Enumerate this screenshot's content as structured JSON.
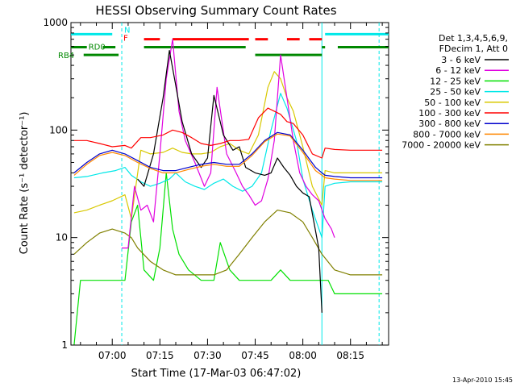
{
  "chart_data": {
    "type": "line",
    "title": "HESSI Observing Summary Count Rates",
    "xlabel": "Start Time (17-Mar-03 06:47:02)",
    "ylabel": "Count Rate (s⁻¹ detector⁻¹)",
    "xlim": [
      "06:47",
      "08:27"
    ],
    "ylim": [
      1,
      1000
    ],
    "yscale": "log",
    "grid": false,
    "x_ticks": [
      "07:00",
      "07:15",
      "07:30",
      "07:45",
      "08:00",
      "08:15"
    ],
    "y_ticks": [
      "1",
      "10",
      "100",
      "1000"
    ],
    "legend": {
      "placement": "right",
      "header": [
        "Det 1,3,4,5,6,9,",
        "FDecim 1, Att 0"
      ],
      "items": [
        {
          "label": "3 - 6 keV",
          "color": "#000000"
        },
        {
          "label": "6 - 12 keV",
          "color": "#e000e0"
        },
        {
          "label": "12 - 25 keV",
          "color": "#00e000"
        },
        {
          "label": "25 - 50 keV",
          "color": "#00e8e8"
        },
        {
          "label": "50 - 100 keV",
          "color": "#d8c800"
        },
        {
          "label": "100 - 300 keV",
          "color": "#ff0000"
        },
        {
          "label": "300 - 800 keV",
          "color": "#0000cc"
        },
        {
          "label": "800 - 7000 keV",
          "color": "#ff8800"
        },
        {
          "label": "7000 - 20000 keV",
          "color": "#808000"
        }
      ]
    },
    "series": [
      {
        "name": "3 - 6 keV",
        "x": [
          "06:47",
          "07:05",
          "07:08",
          "07:10",
          "07:13",
          "07:16",
          "07:18",
          "07:20",
          "07:22",
          "07:25",
          "07:28",
          "07:30",
          "07:32",
          "07:35",
          "07:38",
          "07:40",
          "07:42",
          "07:45",
          "07:48",
          "07:50",
          "07:52",
          "07:54",
          "07:56",
          "07:58",
          "08:00",
          "08:02",
          "08:05",
          "08:06"
        ],
        "y": [
          null,
          null,
          35,
          30,
          60,
          200,
          550,
          260,
          120,
          60,
          45,
          55,
          210,
          90,
          65,
          70,
          45,
          40,
          38,
          40,
          55,
          45,
          38,
          30,
          26,
          24,
          8,
          2
        ]
      },
      {
        "name": "6 - 12 keV",
        "x": [
          "07:03",
          "07:05",
          "07:07",
          "07:09",
          "07:11",
          "07:13",
          "07:15",
          "07:17",
          "07:19",
          "07:21",
          "07:23",
          "07:26",
          "07:29",
          "07:31",
          "07:33",
          "07:36",
          "07:39",
          "07:41",
          "07:43",
          "07:45",
          "07:47",
          "07:49",
          "07:51",
          "07:53",
          "07:55",
          "07:57",
          "07:59",
          "08:01",
          "08:03",
          "08:05",
          "08:07",
          "08:09",
          "08:10"
        ],
        "y": [
          8,
          8,
          30,
          18,
          20,
          14,
          60,
          300,
          700,
          150,
          80,
          50,
          30,
          40,
          250,
          60,
          40,
          30,
          25,
          20,
          22,
          35,
          80,
          500,
          200,
          80,
          40,
          30,
          25,
          22,
          15,
          12,
          10
        ]
      },
      {
        "name": "12 - 25 keV",
        "x": [
          "06:48",
          "06:50",
          "06:55",
          "07:00",
          "07:04",
          "07:06",
          "07:08",
          "07:10",
          "07:13",
          "07:15",
          "07:17",
          "07:19",
          "07:21",
          "07:24",
          "07:28",
          "07:32",
          "07:34",
          "07:37",
          "07:40",
          "07:45",
          "07:50",
          "07:53",
          "07:56",
          "07:59",
          "08:02",
          "08:05",
          "08:08",
          "08:10",
          "08:15",
          "08:20",
          "08:25"
        ],
        "y": [
          1,
          4,
          4,
          4,
          4,
          14,
          20,
          5,
          4,
          8,
          40,
          12,
          7,
          5,
          4,
          4,
          9,
          5,
          4,
          4,
          4,
          5,
          4,
          4,
          4,
          4,
          4,
          3,
          3,
          3,
          3
        ]
      },
      {
        "name": "25 - 50 keV",
        "x": [
          "06:48",
          "06:52",
          "06:57",
          "07:01",
          "07:04",
          "07:06",
          "07:09",
          "07:12",
          "07:15",
          "07:18",
          "07:20",
          "07:23",
          "07:26",
          "07:29",
          "07:32",
          "07:35",
          "07:38",
          "07:41",
          "07:44",
          "07:47",
          "07:50",
          "07:53",
          "07:55",
          "07:58",
          "08:00",
          "08:03",
          "08:06",
          "08:07",
          "08:10",
          "08:15",
          "08:20",
          "08:25"
        ],
        "y": [
          36,
          37,
          40,
          42,
          45,
          38,
          33,
          30,
          32,
          35,
          40,
          33,
          30,
          28,
          32,
          35,
          30,
          27,
          30,
          40,
          100,
          220,
          160,
          80,
          35,
          18,
          10,
          30,
          32,
          33,
          33,
          33
        ]
      },
      {
        "name": "50 - 100 keV",
        "x": [
          "06:48",
          "06:52",
          "06:56",
          "07:00",
          "07:04",
          "07:06",
          "07:09",
          "07:12",
          "07:16",
          "07:19",
          "07:22",
          "07:25",
          "07:28",
          "07:31",
          "07:34",
          "07:37",
          "07:40",
          "07:43",
          "07:46",
          "07:49",
          "07:51",
          "07:53",
          "07:55",
          "07:57",
          "08:00",
          "08:03",
          "08:06",
          "08:07",
          "08:10",
          "08:15",
          "08:20",
          "08:25"
        ],
        "y": [
          17,
          18,
          20,
          22,
          25,
          15,
          65,
          60,
          62,
          68,
          62,
          60,
          60,
          62,
          70,
          75,
          65,
          60,
          90,
          250,
          350,
          300,
          200,
          150,
          70,
          30,
          20,
          42,
          40,
          40,
          40,
          40
        ]
      },
      {
        "name": "100 - 300 keV",
        "x": [
          "06:48",
          "06:52",
          "06:56",
          "07:00",
          "07:04",
          "07:06",
          "07:09",
          "07:12",
          "07:16",
          "07:19",
          "07:22",
          "07:25",
          "07:28",
          "07:31",
          "07:34",
          "07:37",
          "07:40",
          "07:43",
          "07:46",
          "07:49",
          "07:51",
          "07:53",
          "07:55",
          "07:57",
          "08:00",
          "08:03",
          "08:06",
          "08:07",
          "08:10",
          "08:15",
          "08:20",
          "08:25"
        ],
        "y": [
          80,
          80,
          75,
          70,
          72,
          68,
          85,
          85,
          90,
          100,
          95,
          85,
          75,
          72,
          75,
          80,
          80,
          82,
          130,
          160,
          150,
          140,
          120,
          115,
          90,
          60,
          55,
          68,
          66,
          65,
          65,
          65
        ]
      },
      {
        "name": "300 - 800 keV",
        "x": [
          "06:48",
          "06:52",
          "06:56",
          "07:00",
          "07:04",
          "07:08",
          "07:12",
          "07:16",
          "07:20",
          "07:24",
          "07:28",
          "07:32",
          "07:36",
          "07:40",
          "07:44",
          "07:48",
          "07:52",
          "07:56",
          "08:00",
          "08:04",
          "08:06",
          "08:07",
          "08:10",
          "08:15",
          "08:20",
          "08:25"
        ],
        "y": [
          40,
          50,
          60,
          65,
          60,
          52,
          45,
          42,
          42,
          45,
          48,
          50,
          48,
          48,
          60,
          80,
          95,
          90,
          65,
          45,
          40,
          38,
          37,
          36,
          36,
          36
        ]
      },
      {
        "name": "800 - 7000 keV",
        "x": [
          "06:48",
          "06:52",
          "06:56",
          "07:00",
          "07:04",
          "07:08",
          "07:12",
          "07:16",
          "07:20",
          "07:24",
          "07:28",
          "07:32",
          "07:36",
          "07:40",
          "07:44",
          "07:48",
          "07:52",
          "07:56",
          "08:00",
          "08:04",
          "08:06",
          "08:07",
          "08:10",
          "08:15",
          "08:20",
          "08:25"
        ],
        "y": [
          38,
          48,
          58,
          62,
          58,
          50,
          44,
          40,
          40,
          43,
          46,
          48,
          46,
          46,
          58,
          78,
          92,
          88,
          62,
          42,
          38,
          36,
          35,
          34,
          34,
          34
        ]
      },
      {
        "name": "7000 - 20000 keV",
        "x": [
          "06:48",
          "06:52",
          "06:56",
          "07:00",
          "07:04",
          "07:06",
          "07:08",
          "07:12",
          "07:16",
          "07:20",
          "07:24",
          "07:28",
          "07:32",
          "07:36",
          "07:40",
          "07:44",
          "07:48",
          "07:52",
          "07:56",
          "08:00",
          "08:03",
          "08:06",
          "08:10",
          "08:15",
          "08:20",
          "08:25"
        ],
        "y": [
          7,
          9,
          11,
          12,
          11,
          10,
          8,
          6,
          5,
          4.5,
          4.5,
          4.5,
          4.5,
          5,
          7,
          10,
          14,
          18,
          17,
          14,
          10,
          7,
          5,
          4.5,
          4.5,
          4.5
        ]
      }
    ],
    "state_bars": [
      {
        "label": "N",
        "color": "#00e8e8",
        "y": 780,
        "segments": [
          [
            "06:47",
            "07:00"
          ],
          [
            "08:07",
            "08:27"
          ]
        ]
      },
      {
        "label": "F",
        "color": "#ff0000",
        "y": 700,
        "segments": [
          [
            "07:10",
            "07:15"
          ],
          [
            "07:19",
            "07:43"
          ],
          [
            "07:45",
            "07:49"
          ],
          [
            "07:55",
            "07:59"
          ],
          [
            "08:02",
            "08:06"
          ]
        ]
      },
      {
        "label": "RD0",
        "color": "#008800",
        "y": 590,
        "segments": [
          [
            "06:47",
            "06:52"
          ],
          [
            "06:57",
            "07:01"
          ],
          [
            "07:10",
            "07:42"
          ],
          [
            "08:06",
            "08:07"
          ],
          [
            "08:11",
            "08:27"
          ]
        ]
      },
      {
        "label": "RB4",
        "color": "#008800",
        "y": 500,
        "segments": [
          [
            "06:51",
            "07:02"
          ],
          [
            "07:45",
            "08:06"
          ]
        ]
      }
    ],
    "vertical_markers": [
      {
        "x": "07:03",
        "color": "#00e8e8",
        "style": "dashed"
      },
      {
        "x": "08:06",
        "color": "#00e8e8",
        "style": "solid"
      },
      {
        "x": "08:24",
        "color": "#00e8e8",
        "style": "dashed"
      }
    ]
  },
  "footer": {
    "timestamp": "13-Apr-2010 15:45"
  }
}
